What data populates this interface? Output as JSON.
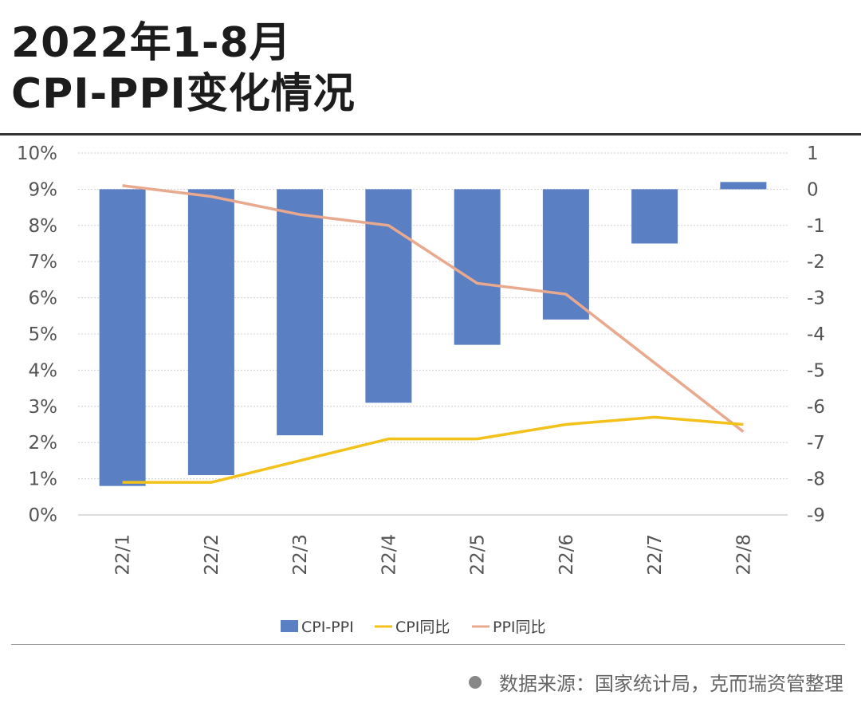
{
  "header": {
    "title_line1": "2022年1-8月",
    "title_line2": "CPI-PPI变化情况"
  },
  "footer": {
    "source": "数据来源：国家统计局，克而瑞资管整理"
  },
  "colors": {
    "bar": "#5B7FC3",
    "cpi_line": "#F2C21B",
    "ppi_line": "#E8A98E",
    "grid": "#d0d0d0"
  },
  "chart_data": {
    "type": "bar",
    "categories": [
      "22/1",
      "22/2",
      "22/3",
      "22/4",
      "22/5",
      "22/6",
      "22/7",
      "22/8"
    ],
    "series": [
      {
        "name": "CPI-PPI",
        "type": "bar",
        "axis": "right",
        "values": [
          -8.2,
          -7.9,
          -6.8,
          -5.9,
          -4.3,
          -3.6,
          -1.5,
          0.2
        ]
      },
      {
        "name": "CPI同比",
        "type": "line",
        "axis": "left",
        "unit": "%",
        "values": [
          0.9,
          0.9,
          1.5,
          2.1,
          2.1,
          2.5,
          2.7,
          2.5
        ]
      },
      {
        "name": "PPI同比",
        "type": "line",
        "axis": "left",
        "unit": "%",
        "values": [
          9.1,
          8.8,
          8.3,
          8.0,
          6.4,
          6.1,
          4.2,
          2.3
        ]
      }
    ],
    "y_left": {
      "min": 0,
      "max": 10,
      "ticks": [
        "0%",
        "1%",
        "2%",
        "3%",
        "4%",
        "5%",
        "6%",
        "7%",
        "8%",
        "9%",
        "10%"
      ]
    },
    "y_right": {
      "min": -9,
      "max": 1,
      "ticks": [
        "1",
        "0",
        "-1",
        "-2",
        "-3",
        "-4",
        "-5",
        "-6",
        "-7",
        "-8",
        "-9"
      ]
    },
    "grid": true,
    "legend_position": "bottom",
    "legend": [
      "CPI-PPI",
      "CPI同比",
      "PPI同比"
    ]
  }
}
